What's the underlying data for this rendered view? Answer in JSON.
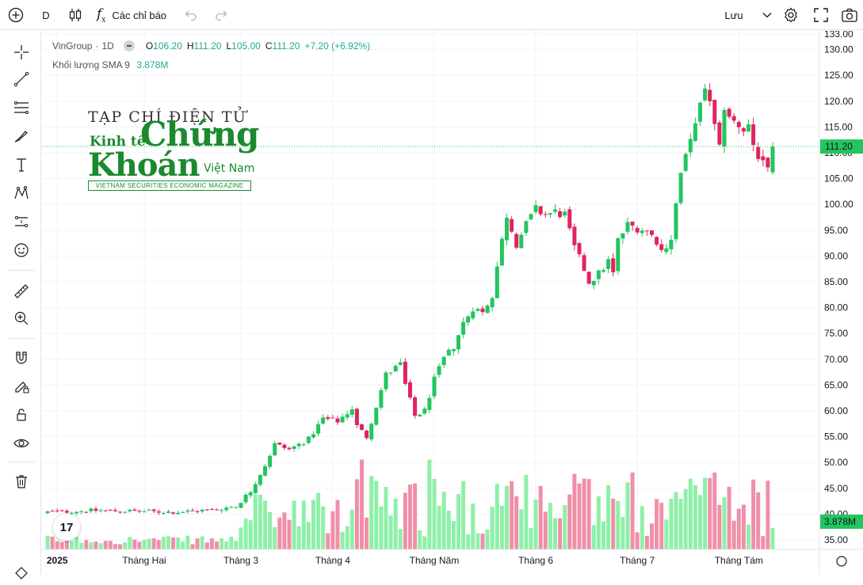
{
  "toolbar": {
    "interval": "D",
    "indicators_label": "Các chỉ báo",
    "save_label": "Lưu"
  },
  "legend": {
    "symbol": "VinGroup",
    "sep": "·",
    "timeframe": "1D",
    "o_label": "O",
    "o": "106.20",
    "h_label": "H",
    "h": "111.20",
    "l_label": "L",
    "l": "105.00",
    "c_label": "C",
    "c": "111.20",
    "change": "+7.20 (+6.92%)",
    "volume_label": "Khối lượng SMA 9",
    "volume_value": "3.878M"
  },
  "logo": {
    "line1": "TẠP CHÍ ĐIỆN TỬ",
    "kinh_te": "Kinh tế",
    "chung": "Chứng",
    "khoan": "Khoán",
    "viet_nam": "Việt Nam",
    "tagline": "VIETNAM SECURITIES ECONOMIC MAGAZINE"
  },
  "tv_logo": "17",
  "colors": {
    "up": "#22c55e",
    "down": "#e0245e",
    "up_vol": "#8ef0a8",
    "down_vol": "#f08fa8",
    "last_line": "#22c55e"
  },
  "chart_data": {
    "type": "candlestick",
    "y_ticks": [
      "35.00",
      "40.00",
      "45.00",
      "50.00",
      "55.00",
      "60.00",
      "65.00",
      "70.00",
      "75.00",
      "80.00",
      "85.00",
      "90.00",
      "95.00",
      "100.00",
      "105.00",
      "110.00",
      "115.00",
      "120.00",
      "125.00",
      "130.00",
      "133.00"
    ],
    "ylim": [
      33,
      133
    ],
    "x_labels": [
      "2025",
      "Tháng Hai",
      "Tháng 3",
      "Tháng 4",
      "Tháng Năm",
      "Tháng 6",
      "Tháng 7",
      "Tháng Tám"
    ],
    "last_price": "111.20",
    "last_volume": "3.878M",
    "anchors": [
      [
        0,
        40.4
      ],
      [
        10,
        40.7
      ],
      [
        20,
        40.5
      ],
      [
        27,
        40.4
      ],
      [
        34,
        40.8
      ],
      [
        39,
        41.5
      ],
      [
        42,
        44.5
      ],
      [
        45,
        49.5
      ],
      [
        47,
        53.5
      ],
      [
        50,
        52.5
      ],
      [
        54,
        54.5
      ],
      [
        57,
        58.5
      ],
      [
        60,
        58.0
      ],
      [
        63,
        60.5
      ],
      [
        64,
        57.0
      ],
      [
        66,
        55.0
      ],
      [
        68,
        61.0
      ],
      [
        70,
        67.0
      ],
      [
        73,
        69.0
      ],
      [
        74,
        65.0
      ],
      [
        76,
        59.0
      ],
      [
        78,
        60.0
      ],
      [
        80,
        66.0
      ],
      [
        82,
        70.0
      ],
      [
        84,
        72.5
      ],
      [
        86,
        77.0
      ],
      [
        88,
        80.0
      ],
      [
        90,
        79.0
      ],
      [
        92,
        82.5
      ],
      [
        93,
        88.0
      ],
      [
        95,
        98.0
      ],
      [
        97,
        92.5
      ],
      [
        99,
        96.0
      ],
      [
        101,
        99.0
      ],
      [
        103,
        98.0
      ],
      [
        105,
        98.5
      ],
      [
        107,
        98.0
      ],
      [
        108,
        94.5
      ],
      [
        109,
        91.5
      ],
      [
        111,
        87.5
      ],
      [
        112,
        85.0
      ],
      [
        114,
        86.5
      ],
      [
        116,
        89.0
      ],
      [
        117,
        86.5
      ],
      [
        118,
        93.0
      ],
      [
        120,
        96.0
      ],
      [
        122,
        95.5
      ],
      [
        124,
        94.8
      ],
      [
        126,
        93.0
      ],
      [
        127,
        91.0
      ],
      [
        129,
        93.5
      ],
      [
        130,
        100.0
      ],
      [
        131,
        106.0
      ],
      [
        133,
        112.0
      ],
      [
        134,
        116.5
      ],
      [
        136,
        121.5
      ],
      [
        137,
        120.5
      ],
      [
        138,
        115.0
      ],
      [
        139,
        111.0
      ],
      [
        140,
        119.0
      ],
      [
        141,
        116.5
      ],
      [
        143,
        115.5
      ],
      [
        144,
        114.5
      ],
      [
        145,
        115.5
      ],
      [
        146,
        111.5
      ],
      [
        148,
        107.5
      ],
      [
        149,
        106.2
      ],
      [
        150,
        111.2
      ]
    ],
    "volume_ylim": [
      0,
      25
    ]
  }
}
